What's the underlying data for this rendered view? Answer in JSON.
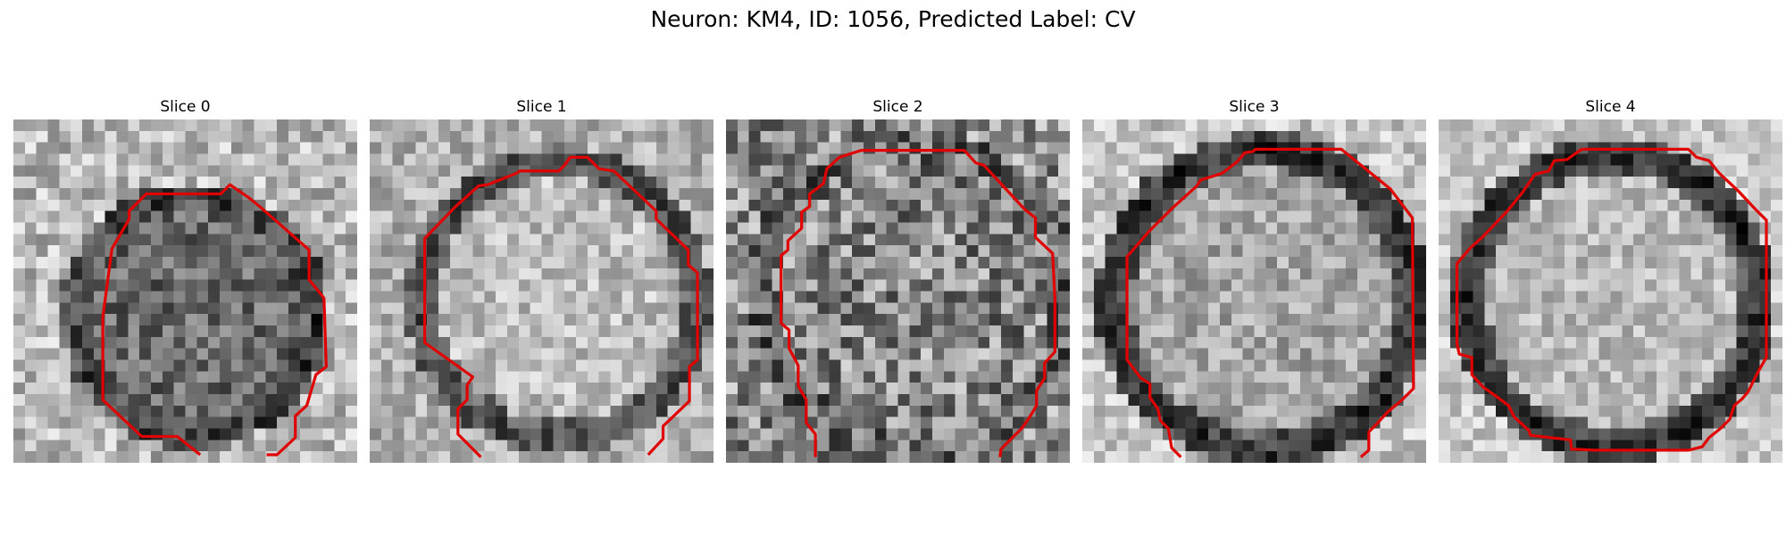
{
  "figure": {
    "title": "Neuron: KM4, ID: 1056, Predicted Label: CV"
  },
  "contour_color": "#e00000",
  "image_style": "grayscale",
  "panels": [
    {
      "title": "Slice 0"
    },
    {
      "title": "Slice 1"
    },
    {
      "title": "Slice 2"
    },
    {
      "title": "Slice 3"
    },
    {
      "title": "Slice 4"
    }
  ]
}
